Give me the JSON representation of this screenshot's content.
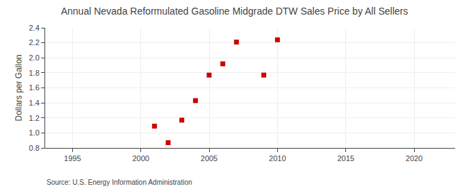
{
  "chart_data": {
    "type": "scatter",
    "title": "Annual Nevada Reformulated Gasoline Midgrade DTW Sales Price by All Sellers",
    "ylabel": "Dollars per Gallon",
    "annotations": [
      "Source: U.S. Energy Information Administration"
    ],
    "x": [
      2001,
      2002,
      2003,
      2004,
      2005,
      2006,
      2007,
      2009,
      2010
    ],
    "values": [
      1.09,
      0.87,
      1.17,
      1.43,
      1.77,
      1.92,
      2.21,
      1.77,
      2.24
    ],
    "color": "#cc0000",
    "marker": "square",
    "xlim": [
      1993,
      2023
    ],
    "xticks": [
      1995,
      2000,
      2005,
      2010,
      2015,
      2020
    ],
    "ylim": [
      0.8,
      2.4
    ],
    "yticks": [
      0.8,
      {
        "value": 1.0,
        "label": "1.0"
      },
      1.2,
      1.4,
      1.6,
      1.8,
      {
        "value": 2.0,
        "label": "2.0"
      },
      2.2,
      2.4
    ],
    "grid": true
  }
}
